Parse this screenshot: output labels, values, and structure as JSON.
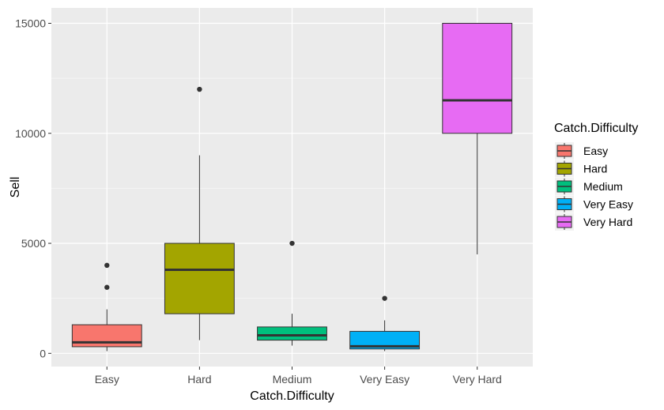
{
  "chart_data": {
    "type": "box",
    "xlabel": "Catch.Difficulty",
    "ylabel": "Sell",
    "ylim": [
      -600,
      15700
    ],
    "yticks": [
      0,
      5000,
      10000,
      15000
    ],
    "grid": true,
    "legend": {
      "title": "Catch.Difficulty",
      "placement": "right"
    },
    "categories": [
      "Easy",
      "Hard",
      "Medium",
      "Very Easy",
      "Very Hard"
    ],
    "boxes": [
      {
        "category": "Easy",
        "color": "#F8766D",
        "whisker_low": 100,
        "q1": 300,
        "median": 500,
        "q3": 1300,
        "whisker_high": 2000,
        "outliers": [
          3000,
          4000
        ]
      },
      {
        "category": "Hard",
        "color": "#A3A500",
        "whisker_low": 600,
        "q1": 1800,
        "median": 3800,
        "q3": 5000,
        "whisker_high": 9000,
        "outliers": [
          12000
        ]
      },
      {
        "category": "Medium",
        "color": "#00BF7D",
        "whisker_low": 350,
        "q1": 600,
        "median": 820,
        "q3": 1200,
        "whisker_high": 1800,
        "outliers": [
          5000
        ]
      },
      {
        "category": "Very Easy",
        "color": "#00B0F6",
        "whisker_low": 100,
        "q1": 200,
        "median": 320,
        "q3": 1000,
        "whisker_high": 1500,
        "outliers": [
          2500
        ]
      },
      {
        "category": "Very Hard",
        "color": "#E76BF3",
        "whisker_low": 4500,
        "q1": 10000,
        "median": 11500,
        "q3": 15000,
        "whisker_high": 15000,
        "outliers": []
      }
    ]
  }
}
